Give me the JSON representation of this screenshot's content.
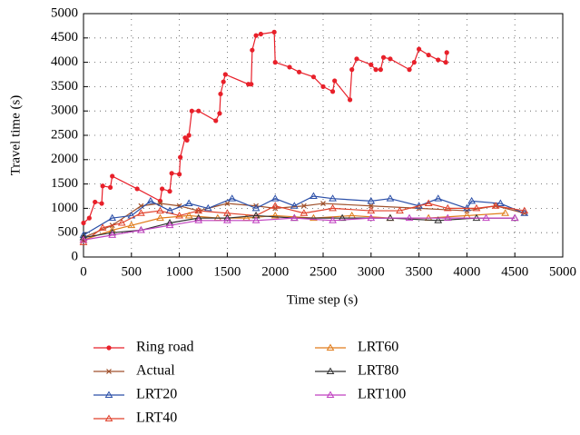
{
  "chart_data": {
    "type": "line",
    "xlabel": "Time step (s)",
    "ylabel": "Travel time (s)",
    "xlim": [
      0,
      5000
    ],
    "ylim": [
      0,
      5000
    ],
    "xticks": [
      0,
      500,
      1000,
      1500,
      2000,
      2500,
      3000,
      3500,
      4000,
      4500,
      5000
    ],
    "yticks": [
      0,
      500,
      1000,
      1500,
      2000,
      2500,
      3000,
      3500,
      4000,
      4500,
      5000
    ],
    "grid": true,
    "legend": "bottom",
    "series": [
      {
        "name": "Ring road",
        "color": "#e8202a",
        "marker": "circle",
        "x": [
          0,
          60,
          120,
          190,
          200,
          280,
          300,
          560,
          800,
          820,
          900,
          920,
          1000,
          1010,
          1060,
          1080,
          1100,
          1130,
          1200,
          1380,
          1420,
          1430,
          1460,
          1480,
          1720,
          1750,
          1760,
          1800,
          1850,
          1990,
          2000,
          2150,
          2250,
          2400,
          2500,
          2600,
          2620,
          2780,
          2800,
          2850,
          3000,
          3050,
          3100,
          3130,
          3200,
          3400,
          3450,
          3500,
          3600,
          3700,
          3780,
          3790
        ],
        "values": [
          700,
          800,
          1130,
          1100,
          1460,
          1430,
          1660,
          1400,
          1150,
          1400,
          1350,
          1720,
          1700,
          2050,
          2450,
          2400,
          2500,
          3000,
          3000,
          2800,
          2950,
          3350,
          3600,
          3750,
          3550,
          3550,
          4250,
          4550,
          4580,
          4620,
          4000,
          3900,
          3800,
          3700,
          3500,
          3400,
          3620,
          3230,
          3850,
          4070,
          3950,
          3850,
          3850,
          4100,
          4070,
          3850,
          4000,
          4270,
          4150,
          4050,
          4000,
          4200
        ]
      },
      {
        "name": "Actual",
        "color": "#a0522d",
        "marker": "x",
        "x": [
          0,
          300,
          600,
          800,
          1000,
          1200,
          1500,
          1800,
          2000,
          2300,
          2500,
          3000,
          3500,
          4000,
          4300,
          4600
        ],
        "values": [
          400,
          650,
          1050,
          1100,
          1050,
          950,
          1100,
          1050,
          1000,
          1050,
          1100,
          1050,
          1000,
          950,
          1050,
          900
        ]
      },
      {
        "name": "LRT20",
        "color": "#2b4fa8",
        "marker": "triangle",
        "x": [
          0,
          300,
          500,
          700,
          900,
          1100,
          1300,
          1550,
          1800,
          2000,
          2200,
          2400,
          2600,
          3000,
          3200,
          3500,
          3700,
          4000,
          4050,
          4350,
          4600
        ],
        "values": [
          450,
          800,
          850,
          1150,
          950,
          1100,
          1000,
          1200,
          1000,
          1200,
          1050,
          1250,
          1200,
          1150,
          1200,
          1050,
          1200,
          1000,
          1150,
          1100,
          900
        ]
      },
      {
        "name": "LRT40",
        "color": "#e0402a",
        "marker": "triangle",
        "x": [
          0,
          200,
          400,
          600,
          800,
          1000,
          1200,
          1500,
          1800,
          2000,
          2300,
          2600,
          3000,
          3300,
          3600,
          3800,
          4100,
          4300,
          4600
        ],
        "values": [
          300,
          600,
          700,
          900,
          950,
          850,
          950,
          900,
          850,
          1050,
          900,
          1000,
          950,
          950,
          1100,
          1000,
          1000,
          1050,
          950
        ]
      },
      {
        "name": "LRT60",
        "color": "#e07b1a",
        "marker": "triangle",
        "x": [
          0,
          300,
          500,
          800,
          1100,
          1400,
          1700,
          2000,
          2400,
          2800,
          3200,
          3600,
          4000,
          4400
        ],
        "values": [
          350,
          550,
          650,
          800,
          850,
          800,
          800,
          850,
          800,
          850,
          800,
          800,
          850,
          900
        ]
      },
      {
        "name": "LRT80",
        "color": "#333333",
        "marker": "triangle",
        "x": [
          0,
          300,
          600,
          900,
          1200,
          1500,
          1800,
          2200,
          2700,
          3200,
          3700,
          4100,
          4500
        ],
        "values": [
          400,
          500,
          550,
          700,
          800,
          800,
          850,
          800,
          800,
          800,
          750,
          800,
          800
        ]
      },
      {
        "name": "LRT100",
        "color": "#c040c0",
        "marker": "triangle",
        "x": [
          0,
          300,
          600,
          900,
          1200,
          1500,
          1800,
          2200,
          2600,
          3000,
          3400,
          3800,
          4200,
          4500
        ],
        "values": [
          350,
          450,
          550,
          650,
          750,
          750,
          750,
          800,
          750,
          800,
          800,
          800,
          800,
          800
        ]
      }
    ]
  }
}
